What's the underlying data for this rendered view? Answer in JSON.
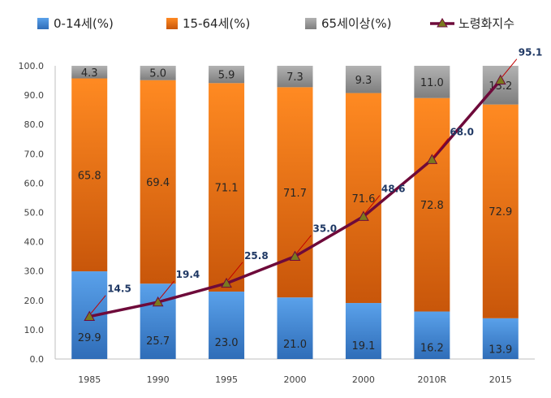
{
  "chart_data": {
    "type": "bar",
    "stacked": true,
    "categories": [
      "1985",
      "1990",
      "1995",
      "2000",
      "2000",
      "2010R",
      "2015"
    ],
    "series": [
      {
        "name": "0-14세(%)",
        "values": [
          29.9,
          25.7,
          23.0,
          21.0,
          19.1,
          16.2,
          13.9
        ],
        "color": "#4a8fd8"
      },
      {
        "name": "15-64세(%)",
        "values": [
          65.8,
          69.4,
          71.1,
          71.7,
          71.6,
          72.8,
          72.9
        ],
        "color": "#f07314"
      },
      {
        "name": "65세이상(%)",
        "values": [
          4.3,
          5.0,
          5.9,
          7.3,
          9.3,
          11.0,
          13.2
        ],
        "color": "#9a9a9a"
      }
    ],
    "value_labels": [
      [
        "29.9",
        "25.7",
        "23.0",
        "21.0",
        "19.1",
        "16.2",
        "13.9"
      ],
      [
        "65.8",
        "69.4",
        "71.1",
        "71.7",
        "71.6",
        "72.8",
        "72.9"
      ],
      [
        "4.3",
        "5.0",
        "5.9",
        "7.3",
        "9.3",
        "11.0",
        "13.2"
      ]
    ],
    "line_series": {
      "name": "노령화지수",
      "values": [
        14.5,
        19.4,
        25.8,
        35.0,
        48.6,
        68.0,
        95.1
      ],
      "labels": [
        "14.5",
        "19.4",
        "25.8",
        "35.0",
        "48.6",
        "68.0",
        "95.1"
      ],
      "color": "#6e0a3a",
      "marker_color": "#7a7a1e"
    },
    "y_ticks": [
      "0.0",
      "10.0",
      "20.0",
      "30.0",
      "40.0",
      "50.0",
      "60.0",
      "70.0",
      "80.0",
      "90.0",
      "100.0"
    ],
    "ylim": [
      0,
      100
    ],
    "grid": false,
    "legend_position": "top",
    "title": "",
    "xlabel": "",
    "ylabel": ""
  }
}
